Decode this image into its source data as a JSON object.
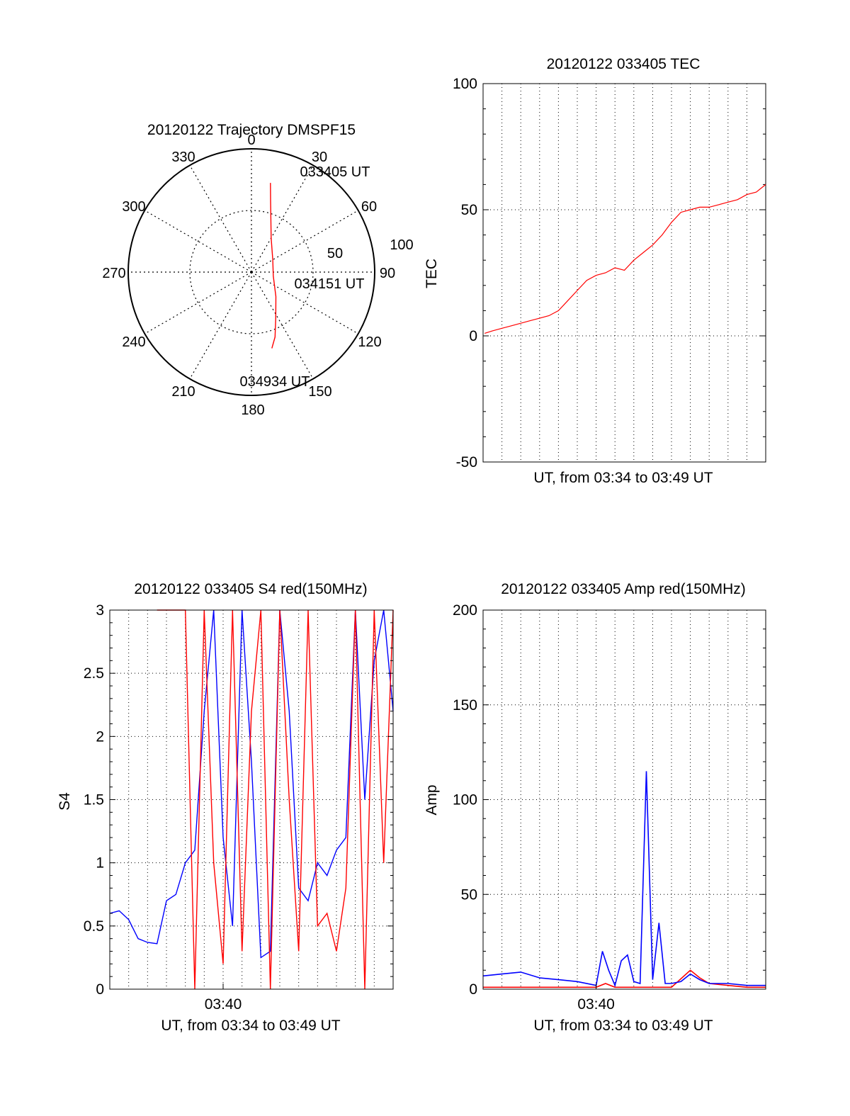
{
  "chart_data": [
    {
      "id": "trajectory",
      "type": "polar",
      "title": "20120122 Trajectory DMSPF15",
      "angle_labels": [
        "0",
        "30",
        "60",
        "90",
        "120",
        "150",
        "180",
        "210",
        "240",
        "270",
        "300",
        "330"
      ],
      "radius_labels": [
        "50",
        "100"
      ],
      "rlim": [
        0,
        100
      ],
      "grid": true,
      "series": [
        {
          "color": "#ff0000",
          "points": [
            {
              "az": 12,
              "r": 74
            },
            {
              "az": 15,
              "r": 60
            },
            {
              "az": 20,
              "r": 46
            },
            {
              "az": 30,
              "r": 32
            },
            {
              "az": 60,
              "r": 20
            },
            {
              "az": 100,
              "r": 18
            },
            {
              "az": 135,
              "r": 28
            },
            {
              "az": 152,
              "r": 42
            },
            {
              "az": 160,
              "r": 56
            },
            {
              "az": 165,
              "r": 64
            }
          ]
        }
      ],
      "annotations": [
        {
          "text": "033405 UT",
          "az": 12,
          "r": 74
        },
        {
          "text": "034151 UT",
          "az": 100,
          "r": 18
        },
        {
          "text": "034934 UT",
          "az": 165,
          "r": 64
        }
      ]
    },
    {
      "id": "tec",
      "type": "line",
      "title": "20120122 033405 TEC",
      "ylabel": "TEC",
      "xlabel": "UT, from 03:34 to 03:49 UT",
      "xlim": [
        "03:34",
        "03:49"
      ],
      "x_tick_labels": [],
      "ylim": [
        -50,
        100
      ],
      "y_ticks": [
        "100",
        "50",
        "0",
        "-50"
      ],
      "grid": true,
      "series": [
        {
          "color": "#ff0000",
          "x": [
            "03:34:05",
            "03:34:30",
            "03:35:00",
            "03:35:30",
            "03:36:00",
            "03:36:30",
            "03:37:00",
            "03:37:30",
            "03:38:00",
            "03:38:30",
            "03:39:00",
            "03:39:30",
            "03:40:00",
            "03:40:30",
            "03:41:00",
            "03:41:30",
            "03:42:00",
            "03:42:30",
            "03:43:00",
            "03:43:30",
            "03:44:00",
            "03:44:30",
            "03:45:00",
            "03:45:30",
            "03:46:00",
            "03:46:30",
            "03:47:00",
            "03:47:30",
            "03:48:00",
            "03:48:30",
            "03:49:00"
          ],
          "values": [
            1,
            2,
            3,
            4,
            5,
            6,
            7,
            8,
            10,
            14,
            18,
            22,
            24,
            25,
            27,
            26,
            30,
            33,
            36,
            40,
            45,
            49,
            50,
            51,
            51,
            52,
            53,
            54,
            56,
            57,
            60
          ]
        }
      ]
    },
    {
      "id": "s4",
      "type": "line",
      "title": "20120122 033405 S4 red(150MHz)",
      "ylabel": "S4",
      "xlabel": "UT, from 03:34 to 03:49 UT",
      "xlim": [
        "03:34",
        "03:49"
      ],
      "x_tick_labels": [
        "03:40"
      ],
      "ylim": [
        0,
        3
      ],
      "y_ticks": [
        "3",
        "2.5",
        "2",
        "1.5",
        "1",
        "0.5",
        "0"
      ],
      "grid": true,
      "series": [
        {
          "color": "#0000ff",
          "x": [
            "03:34:00",
            "03:34:30",
            "03:35:00",
            "03:35:30",
            "03:36:00",
            "03:36:30",
            "03:37:00",
            "03:37:30",
            "03:38:00",
            "03:38:30",
            "03:39:00",
            "03:39:30",
            "03:40:00",
            "03:40:30",
            "03:41:00",
            "03:41:30",
            "03:42:00",
            "03:42:30",
            "03:43:00",
            "03:43:30",
            "03:44:00",
            "03:44:30",
            "03:45:00",
            "03:45:30",
            "03:46:00",
            "03:46:30",
            "03:47:00",
            "03:47:30",
            "03:48:00",
            "03:48:30",
            "03:49:00"
          ],
          "values": [
            0.6,
            0.62,
            0.55,
            0.4,
            0.37,
            0.36,
            0.7,
            0.75,
            1.0,
            1.1,
            2.2,
            3.0,
            1.2,
            0.5,
            3.0,
            1.8,
            0.25,
            0.3,
            3.0,
            2.2,
            0.8,
            0.7,
            1.0,
            0.9,
            1.1,
            1.2,
            3.0,
            1.5,
            2.6,
            3.0,
            2.2
          ]
        },
        {
          "color": "#ff0000",
          "x": [
            "03:34:00",
            "03:34:30",
            "03:35:00",
            "03:35:30",
            "03:36:00",
            "03:36:30",
            "03:37:00",
            "03:37:30",
            "03:38:00",
            "03:38:30",
            "03:39:00",
            "03:39:30",
            "03:40:00",
            "03:40:30",
            "03:41:00",
            "03:41:30",
            "03:42:00",
            "03:42:30",
            "03:43:00",
            "03:43:30",
            "03:44:00",
            "03:44:30",
            "03:45:00",
            "03:45:30",
            "03:46:00",
            "03:46:30",
            "03:47:00",
            "03:47:30",
            "03:48:00",
            "03:48:30",
            "03:49:00"
          ],
          "values": [
            null,
            null,
            null,
            null,
            null,
            3.0,
            3.0,
            3.0,
            3.0,
            0.0,
            3.0,
            1.0,
            0.2,
            3.0,
            0.3,
            2.2,
            3.0,
            0.0,
            3.0,
            1.5,
            0.3,
            3.0,
            0.5,
            0.6,
            0.3,
            0.8,
            3.0,
            0.0,
            3.0,
            1.0,
            3.0
          ]
        }
      ]
    },
    {
      "id": "amp",
      "type": "line",
      "title": "20120122 033405 Amp red(150MHz)",
      "ylabel": "Amp",
      "xlabel": "UT, from 03:34 to 03:49 UT",
      "xlim": [
        "03:34",
        "03:49"
      ],
      "x_tick_labels": [
        "03:40"
      ],
      "ylim": [
        0,
        200
      ],
      "y_ticks": [
        "200",
        "150",
        "100",
        "50",
        "0"
      ],
      "grid": true,
      "series": [
        {
          "color": "#ff0000",
          "x": [
            "03:34:00",
            "03:36:00",
            "03:38:00",
            "03:40:00",
            "03:40:30",
            "03:41:00",
            "03:41:30",
            "03:42:00",
            "03:43:00",
            "03:44:00",
            "03:45:00",
            "03:45:30",
            "03:46:00",
            "03:47:00",
            "03:48:00",
            "03:49:00"
          ],
          "values": [
            1,
            1,
            1,
            1,
            3,
            1,
            1,
            1,
            1,
            1,
            10,
            6,
            3,
            2,
            1,
            1
          ]
        },
        {
          "color": "#0000ff",
          "x": [
            "03:34:00",
            "03:35:00",
            "03:36:00",
            "03:37:00",
            "03:38:00",
            "03:39:00",
            "03:40:00",
            "03:40:20",
            "03:40:40",
            "03:41:00",
            "03:41:20",
            "03:41:40",
            "03:42:00",
            "03:42:20",
            "03:42:40",
            "03:43:00",
            "03:43:20",
            "03:43:40",
            "03:44:00",
            "03:44:30",
            "03:45:00",
            "03:45:30",
            "03:46:00",
            "03:47:00",
            "03:48:00",
            "03:49:00"
          ],
          "values": [
            7,
            8,
            9,
            6,
            5,
            4,
            2,
            20,
            10,
            2,
            15,
            18,
            4,
            3,
            115,
            5,
            35,
            3,
            3,
            4,
            8,
            5,
            3,
            3,
            2,
            2
          ]
        }
      ]
    }
  ]
}
